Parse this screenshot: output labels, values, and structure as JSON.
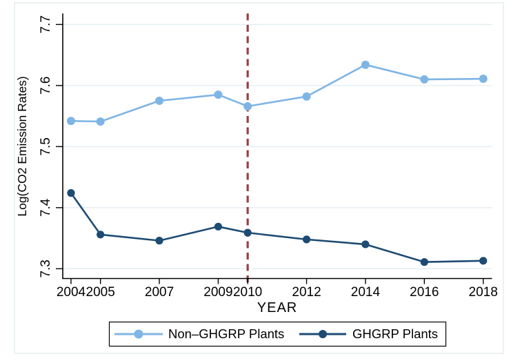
{
  "figure": {
    "background": "#ffffff",
    "border_color": "#ecf2f2"
  },
  "chart_data": {
    "type": "line",
    "title": "",
    "xlabel": "YEAR",
    "ylabel": "Log(CO2 Emission Rates)",
    "x": [
      2004,
      2005,
      2007,
      2009,
      2010,
      2012,
      2014,
      2016,
      2018
    ],
    "x_ticks": [
      2004,
      2005,
      2007,
      2009,
      2010,
      2012,
      2014,
      2016,
      2018
    ],
    "y_ticks": [
      7.3,
      7.4,
      7.5,
      7.6,
      7.7
    ],
    "xlim": [
      2003.72,
      2018.3
    ],
    "ylim": [
      7.284,
      7.718
    ],
    "grid": true,
    "legend_position": "bottom",
    "series": [
      {
        "name": "Non–GHGRP Plants",
        "color": "#7fb5e4",
        "values": [
          7.542,
          7.541,
          7.575,
          7.585,
          7.566,
          7.582,
          7.634,
          7.61,
          7.611
        ]
      },
      {
        "name": "GHGRP Plants",
        "color": "#1d4b73",
        "values": [
          7.424,
          7.356,
          7.346,
          7.369,
          7.359,
          7.348,
          7.34,
          7.311,
          7.313
        ]
      }
    ],
    "vline": {
      "x": 2010,
      "style": "dashed",
      "color": "#963f46"
    },
    "colors": {
      "grid": "#e4edf2",
      "axis": "#000000",
      "legend_border": "#000000"
    }
  }
}
